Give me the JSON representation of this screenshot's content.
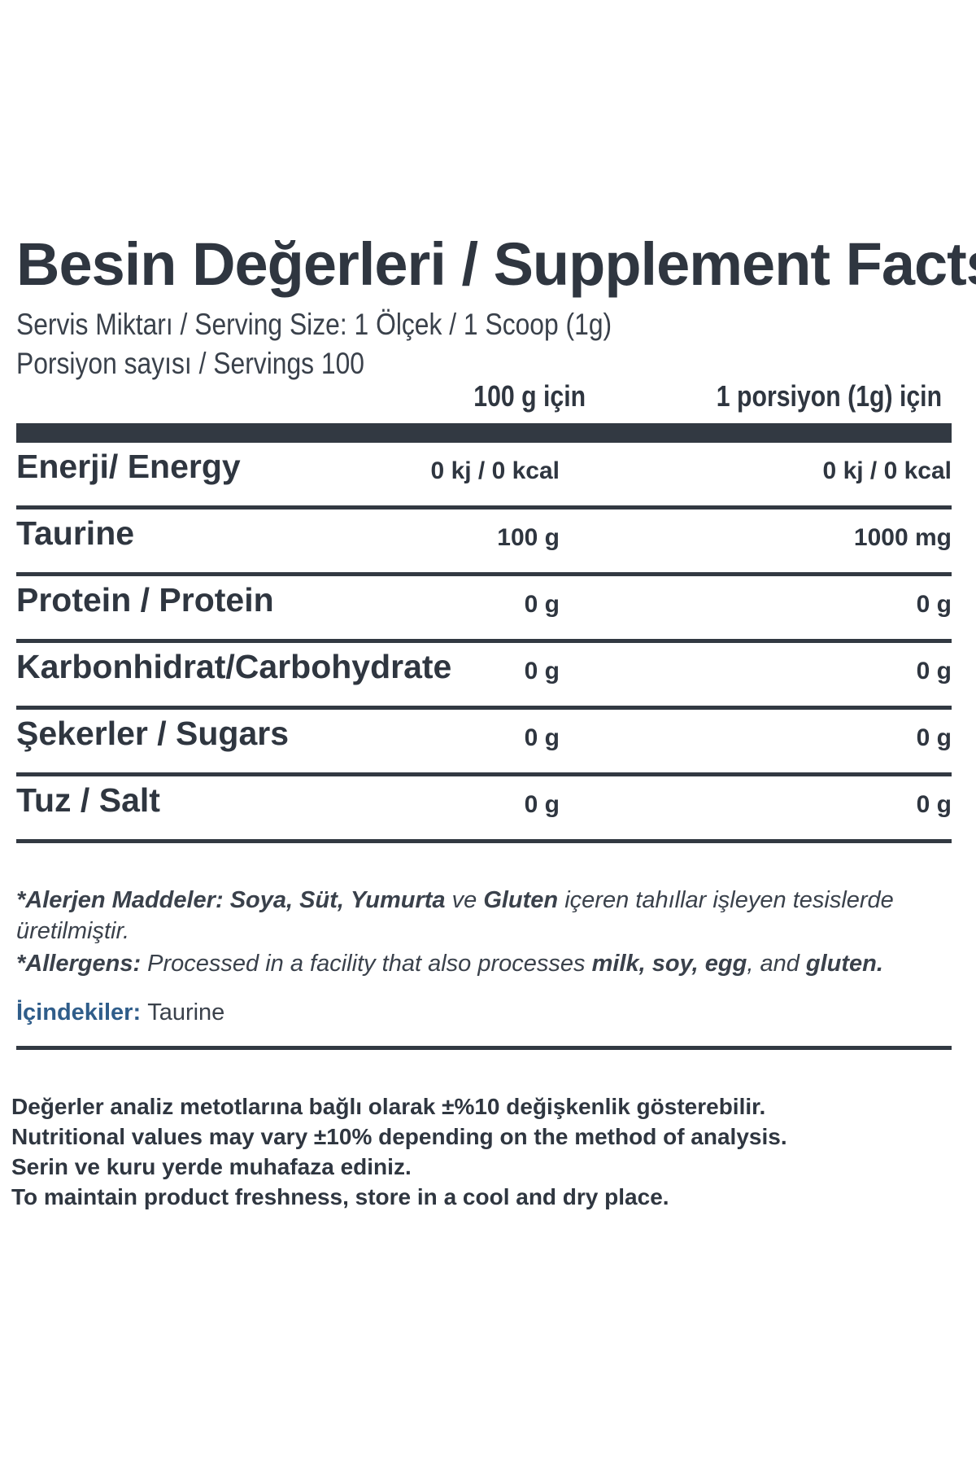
{
  "header": {
    "title": "Besin Değerleri / Supplement Facts",
    "serving_size": "Servis Miktarı / Serving Size: 1 Ölçek / 1 Scoop (1g)",
    "servings": "Porsiyon sayısı / Servings 100"
  },
  "columns": {
    "per_100g": "100 g için",
    "per_serving": "1 porsiyon (1g) için"
  },
  "rows": [
    {
      "label": "Enerji/ Energy",
      "per_100g": "0 kj / 0 kcal",
      "per_serving": "0 kj / 0 kcal"
    },
    {
      "label": "Taurine",
      "per_100g": "100 g",
      "per_serving": "1000 mg"
    },
    {
      "label": "Protein / Protein",
      "per_100g": "0 g",
      "per_serving": "0 g"
    },
    {
      "label": "Karbonhidrat/Carbohydrate",
      "per_100g": "0 g",
      "per_serving": "0 g"
    },
    {
      "label": "Şekerler / Sugars",
      "per_100g": "0 g",
      "per_serving": "0 g"
    },
    {
      "label": "Tuz / Salt",
      "per_100g": "0 g",
      "per_serving": "0 g"
    }
  ],
  "allergens": {
    "tr_label": "*Alerjen Maddeler:",
    "tr_soya": "Soya,",
    "tr_sut": "Süt,",
    "tr_yumurta": "Yumurta",
    "tr_ve": "ve",
    "tr_gluten": "Gluten",
    "tr_rest": "içeren tahıllar işleyen tesislerde",
    "tr_line2": "üretilmiştir.",
    "en_label": "*Allergens:",
    "en_text": "Processed in a facility that also processes",
    "en_milk": "milk,",
    "en_soy": "soy,",
    "en_egg": "egg",
    "en_and": ", and",
    "en_gluten": "gluten."
  },
  "ingredients": {
    "label": "İçindekiler:",
    "value": "Taurine"
  },
  "footer": {
    "line1": "Değerler analiz metotlarına bağlı olarak ±%10 değişkenlik gösterebilir.",
    "line2": "Nutritional values may vary ±10% depending on the method of analysis.",
    "line3": "Serin ve kuru yerde muhafaza ediniz.",
    "line4": "To maintain product freshness, store in a cool and dry place."
  },
  "colors": {
    "text": "#2f3640",
    "rule": "#323942",
    "ingredients_label": "#2f5d8a"
  }
}
